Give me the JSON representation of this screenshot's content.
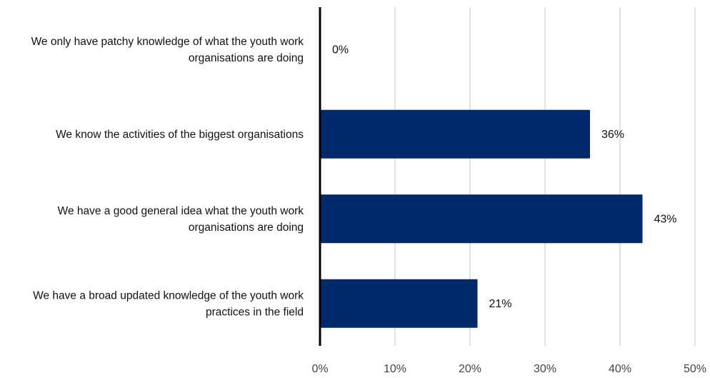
{
  "chart_data": {
    "type": "bar",
    "orientation": "horizontal",
    "categories": [
      [
        "We only have patchy knowledge of what the youth work",
        "organisations are doing"
      ],
      [
        "We know the activities of the biggest organisations"
      ],
      [
        "We have a good general idea what the youth work",
        "organisations are doing"
      ],
      [
        "We have a broad updated knowledge of the youth work",
        "practices in the field"
      ]
    ],
    "values": [
      0,
      36,
      43,
      21
    ],
    "value_labels": [
      "0%",
      "36%",
      "43%",
      "21%"
    ],
    "xlim": [
      0,
      50
    ],
    "x_ticks": [
      0,
      10,
      20,
      30,
      40,
      50
    ],
    "x_tick_labels": [
      "0%",
      "10%",
      "20%",
      "30%",
      "40%",
      "50%"
    ],
    "grid": true,
    "legend": "none",
    "colors": {
      "bar": "#002a6c",
      "grid": "#d9d9d9",
      "axis": "#000000"
    }
  }
}
